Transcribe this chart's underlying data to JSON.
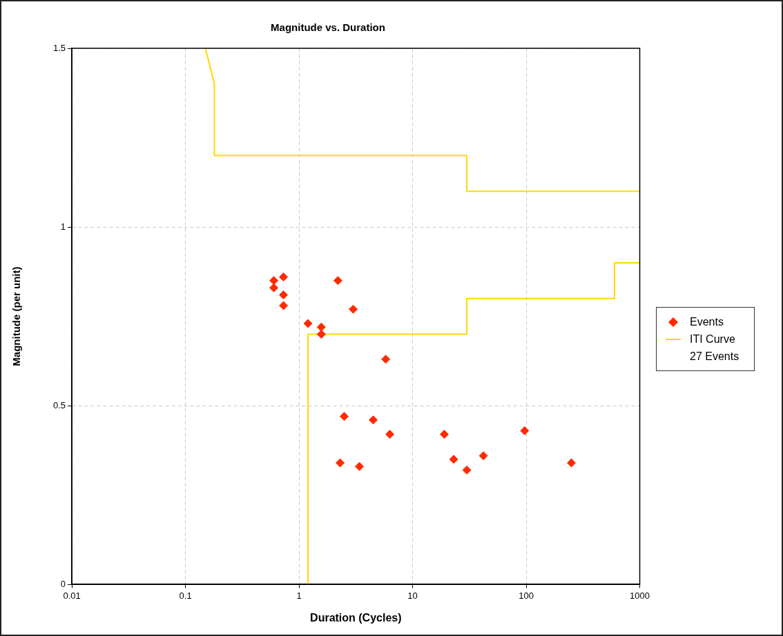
{
  "chart_data": {
    "type": "scatter",
    "title": "Magnitude vs. Duration",
    "xlabel": "Duration (Cycles)",
    "ylabel": "Magnitude (per unit)",
    "log": "x",
    "xlim": [
      0.01,
      1000
    ],
    "xticks": [
      0.01,
      0.1,
      1,
      10,
      100,
      1000
    ],
    "ylim": [
      0,
      1.5
    ],
    "yticks": [
      0,
      0.5,
      1,
      1.5
    ],
    "grid": true,
    "legend": "right",
    "annotations": [
      "27 Events"
    ],
    "series": [
      {
        "name": "Events",
        "marker": "diamond",
        "color": "#ff2a00",
        "x": [
          0.6,
          0.6,
          0.73,
          0.73,
          0.73,
          2.2,
          3.0,
          1.2,
          1.57,
          1.57,
          5.8,
          2.5,
          4.5,
          6.3,
          2.3,
          3.4,
          19,
          23,
          30,
          42,
          97,
          250
        ],
        "values": [
          0.85,
          0.83,
          0.86,
          0.81,
          0.78,
          0.85,
          0.77,
          0.73,
          0.72,
          0.7,
          0.63,
          0.47,
          0.46,
          0.42,
          0.34,
          0.33,
          0.42,
          0.35,
          0.32,
          0.36,
          0.43,
          0.34
        ]
      },
      {
        "name": "ITI Curve",
        "type": "line",
        "marker": "none",
        "color": "#ffd700",
        "x": [
          0.15,
          0.18,
          0.18,
          30,
          30,
          1000
        ],
        "values": [
          1.5,
          1.4,
          1.2,
          1.2,
          1.1,
          1.1
        ]
      },
      {
        "type": "line",
        "marker": "none",
        "color": "#ffd700",
        "x": [
          1.2,
          1.2,
          30,
          30,
          600,
          600,
          1000
        ],
        "values": [
          0,
          0.7,
          0.7,
          0.8,
          0.8,
          0.9,
          0.9
        ]
      }
    ]
  }
}
